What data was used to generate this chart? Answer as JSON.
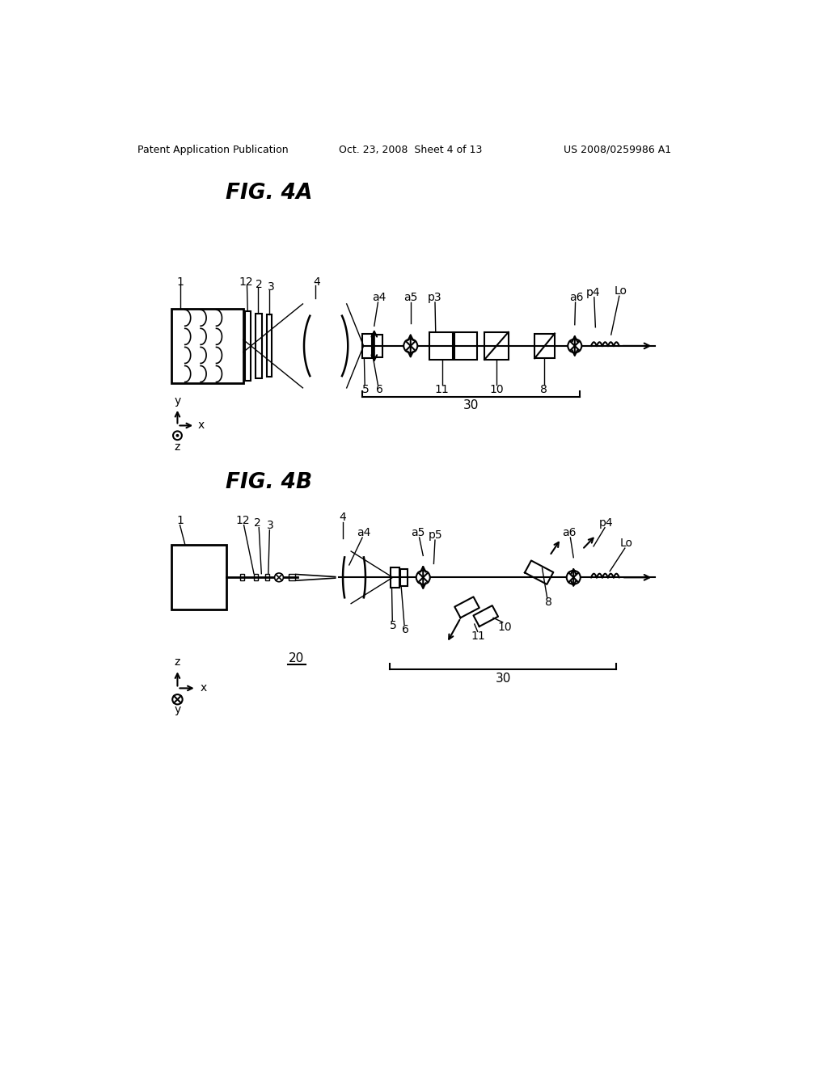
{
  "bg_color": "#ffffff",
  "text_color": "#000000",
  "line_color": "#000000",
  "header_left": "Patent Application Publication",
  "header_center": "Oct. 23, 2008  Sheet 4 of 13",
  "header_right": "US 2008/0259986 A1",
  "fig4a_title": "FIG. 4A",
  "fig4b_title": "FIG. 4B"
}
